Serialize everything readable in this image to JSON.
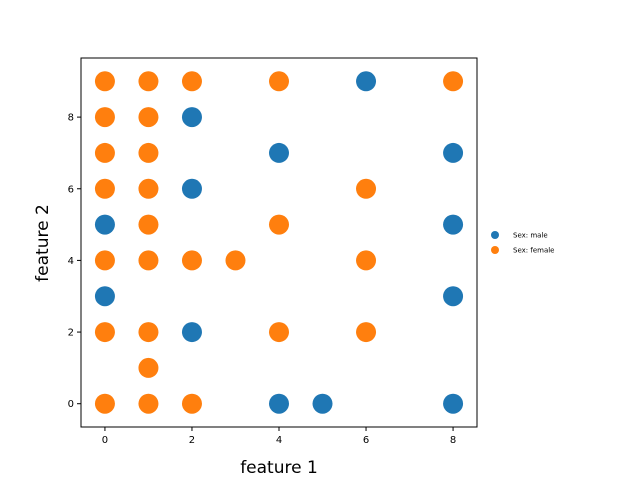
{
  "chart_data": {
    "type": "scatter",
    "xlabel": "feature 1",
    "ylabel": "feature 2",
    "xlim": [
      -0.55,
      8.55
    ],
    "ylim": [
      -0.65,
      9.65
    ],
    "xticks": [
      0,
      2,
      4,
      6,
      8
    ],
    "yticks": [
      0,
      2,
      4,
      6,
      8
    ],
    "grid": false,
    "legend_position": "right",
    "series": [
      {
        "name": "Sex: male",
        "color": "#1f77b4",
        "points": [
          [
            0,
            5
          ],
          [
            0,
            3
          ],
          [
            2,
            8
          ],
          [
            2,
            6
          ],
          [
            2,
            2
          ],
          [
            4,
            7
          ],
          [
            4,
            0
          ],
          [
            5,
            0
          ],
          [
            6,
            9
          ],
          [
            8,
            7
          ],
          [
            8,
            5
          ],
          [
            8,
            3
          ],
          [
            8,
            0
          ]
        ]
      },
      {
        "name": "Sex: female",
        "color": "#ff7f0e",
        "points": [
          [
            0,
            9
          ],
          [
            0,
            8
          ],
          [
            0,
            7
          ],
          [
            0,
            6
          ],
          [
            0,
            4
          ],
          [
            0,
            2
          ],
          [
            0,
            0
          ],
          [
            1,
            9
          ],
          [
            1,
            8
          ],
          [
            1,
            7
          ],
          [
            1,
            6
          ],
          [
            1,
            5
          ],
          [
            1,
            4
          ],
          [
            1,
            2
          ],
          [
            1,
            1
          ],
          [
            1,
            0
          ],
          [
            2,
            9
          ],
          [
            2,
            4
          ],
          [
            2,
            0
          ],
          [
            3,
            4
          ],
          [
            4,
            9
          ],
          [
            4,
            5
          ],
          [
            4,
            2
          ],
          [
            6,
            6
          ],
          [
            6,
            4
          ],
          [
            6,
            2
          ],
          [
            8,
            9
          ]
        ]
      }
    ]
  }
}
